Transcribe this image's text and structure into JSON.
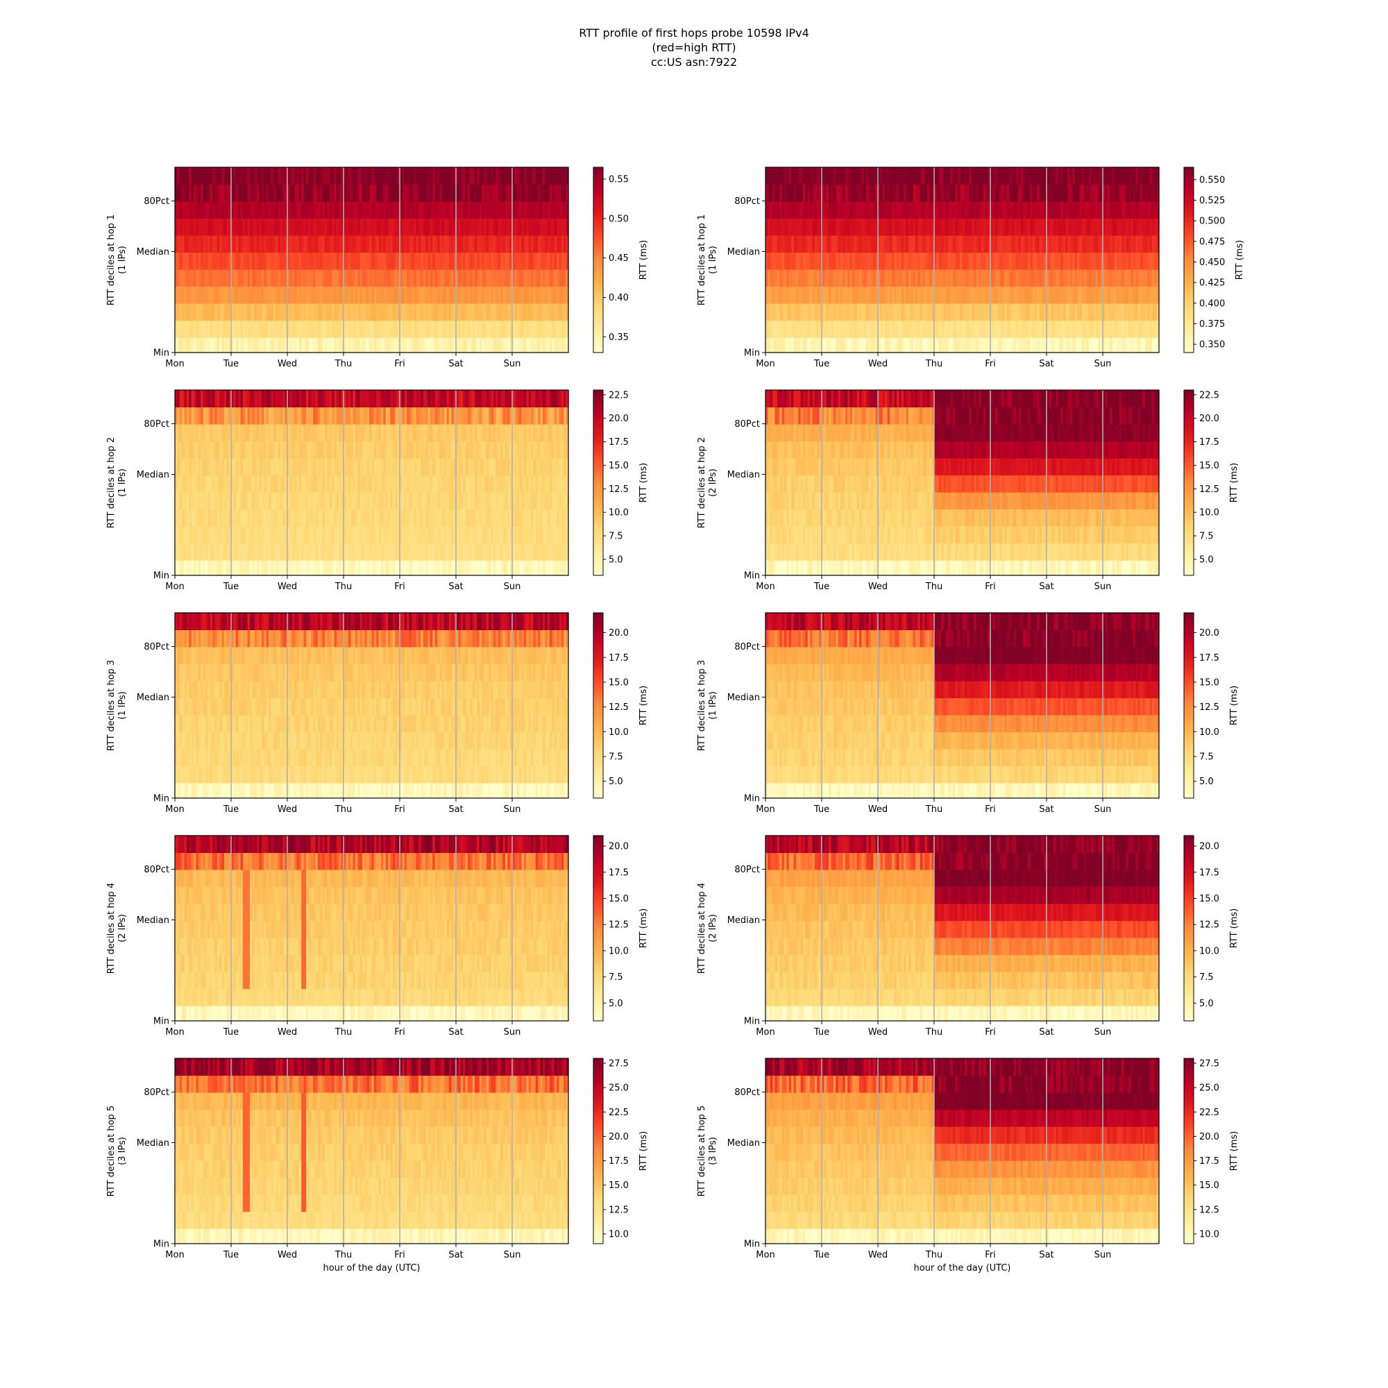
{
  "figure": {
    "title_lines": [
      "RTT profile of first hops probe 10598 IPv4",
      "(red=high RTT)",
      "cc:US asn:7922"
    ],
    "xlabel": "hour of the day (UTC)",
    "day_labels": [
      "Mon",
      "Tue",
      "Wed",
      "Thu",
      "Fri",
      "Sat",
      "Sun"
    ],
    "y_tick_labels": [
      "Min",
      "Median",
      "80Pct"
    ],
    "colorbar_label": "RTT (ms)",
    "colormap": [
      "#ffffcc",
      "#ffeda0",
      "#fed976",
      "#feb24c",
      "#fd8d3c",
      "#fc4e2a",
      "#e31a1c",
      "#bd0026",
      "#800026"
    ]
  },
  "chart_data": [
    {
      "type": "heatmap",
      "column": "left",
      "hop": 1,
      "ylabel": "RTT deciles at hop 1",
      "ylabel2": "(1 IPs)",
      "clim": [
        0.33,
        0.565
      ],
      "cbar_ticks": [
        "0.35",
        "0.40",
        "0.45",
        "0.50",
        "0.55"
      ],
      "cbar_tick_values": [
        0.35,
        0.4,
        0.45,
        0.5,
        0.55
      ],
      "baseline_deciles": [
        0.35,
        0.38,
        0.41,
        0.44,
        0.46,
        0.48,
        0.5,
        0.52,
        0.54,
        0.56,
        0.57
      ],
      "shift_day": null
    },
    {
      "type": "heatmap",
      "column": "right",
      "hop": 1,
      "ylabel": "RTT deciles at hop 1",
      "ylabel2": "(1 IPs)",
      "clim": [
        0.34,
        0.565
      ],
      "cbar_ticks": [
        "0.350",
        "0.375",
        "0.400",
        "0.425",
        "0.450",
        "0.475",
        "0.500",
        "0.525",
        "0.550"
      ],
      "cbar_tick_values": [
        0.35,
        0.375,
        0.4,
        0.425,
        0.45,
        0.475,
        0.5,
        0.525,
        0.55
      ],
      "baseline_deciles": [
        0.355,
        0.385,
        0.41,
        0.44,
        0.46,
        0.48,
        0.5,
        0.52,
        0.54,
        0.56,
        0.57
      ],
      "shift_day": null
    },
    {
      "type": "heatmap",
      "column": "left",
      "hop": 2,
      "ylabel": "RTT deciles at hop 2",
      "ylabel2": "(1 IPs)",
      "clim": [
        3.3,
        23
      ],
      "cbar_ticks": [
        "5.0",
        "7.5",
        "10.0",
        "12.5",
        "15.0",
        "17.5",
        "20.0",
        "22.5"
      ],
      "cbar_tick_values": [
        5,
        7.5,
        10,
        12.5,
        15,
        17.5,
        20,
        22.5
      ],
      "baseline_deciles": [
        4.2,
        7.5,
        7.8,
        8.0,
        8.2,
        8.4,
        8.6,
        8.9,
        9.3,
        12.5,
        20.0
      ],
      "shift_day": null
    },
    {
      "type": "heatmap",
      "column": "right",
      "hop": 2,
      "ylabel": "RTT deciles at hop 2",
      "ylabel2": "(2 IPs)",
      "clim": [
        3.3,
        23
      ],
      "cbar_ticks": [
        "5.0",
        "7.5",
        "10.0",
        "12.5",
        "15.0",
        "17.5",
        "20.0",
        "22.5"
      ],
      "cbar_tick_values": [
        5,
        7.5,
        10,
        12.5,
        15,
        17.5,
        20,
        22.5
      ],
      "baseline_deciles": [
        4.2,
        7.6,
        8.0,
        8.3,
        8.6,
        8.9,
        9.3,
        9.8,
        10.8,
        13.5,
        20.0
      ],
      "shift_day": 3.0,
      "shifted_deciles": [
        4.2,
        8.0,
        9.0,
        10.0,
        12.5,
        15.5,
        18.5,
        21.0,
        22.5,
        23.0,
        23.0
      ]
    },
    {
      "type": "heatmap",
      "column": "left",
      "hop": 3,
      "ylabel": "RTT deciles at hop 3",
      "ylabel2": "(1 IPs)",
      "clim": [
        3.3,
        22
      ],
      "cbar_ticks": [
        "5.0",
        "7.5",
        "10.0",
        "12.5",
        "15.0",
        "17.5",
        "20.0"
      ],
      "cbar_tick_values": [
        5,
        7.5,
        10,
        12.5,
        15,
        17.5,
        20
      ],
      "baseline_deciles": [
        4.2,
        7.6,
        7.9,
        8.1,
        8.3,
        8.5,
        8.7,
        9.0,
        9.5,
        13.0,
        19.5
      ],
      "shift_day": null
    },
    {
      "type": "heatmap",
      "column": "right",
      "hop": 3,
      "ylabel": "RTT deciles at hop 3",
      "ylabel2": "(1 IPs)",
      "clim": [
        3.3,
        22
      ],
      "cbar_ticks": [
        "5.0",
        "7.5",
        "10.0",
        "12.5",
        "15.0",
        "17.5",
        "20.0"
      ],
      "cbar_tick_values": [
        5,
        7.5,
        10,
        12.5,
        15,
        17.5,
        20
      ],
      "baseline_deciles": [
        4.2,
        7.7,
        8.1,
        8.4,
        8.7,
        9.0,
        9.4,
        9.9,
        10.8,
        13.5,
        19.5
      ],
      "shift_day": 3.0,
      "shifted_deciles": [
        4.2,
        8.0,
        9.0,
        10.2,
        12.5,
        14.8,
        17.5,
        20.0,
        22.0,
        22.0,
        22.0
      ]
    },
    {
      "type": "heatmap",
      "column": "left",
      "hop": 4,
      "ylabel": "RTT deciles at hop 4",
      "ylabel2": "(2 IPs)",
      "clim": [
        3.3,
        21
      ],
      "cbar_ticks": [
        "5.0",
        "7.5",
        "10.0",
        "12.5",
        "15.0",
        "17.5",
        "20.0"
      ],
      "cbar_tick_values": [
        5,
        7.5,
        10,
        12.5,
        15,
        17.5,
        20
      ],
      "baseline_deciles": [
        4.2,
        7.6,
        7.9,
        8.1,
        8.3,
        8.5,
        8.7,
        9.0,
        9.5,
        13.0,
        19.0
      ],
      "shift_day": null,
      "spikes": [
        {
          "day": 1.2,
          "width": 0.1,
          "value": 13.0
        },
        {
          "day": 2.22,
          "width": 0.1,
          "value": 13.5
        }
      ]
    },
    {
      "type": "heatmap",
      "column": "right",
      "hop": 4,
      "ylabel": "RTT deciles at hop 4",
      "ylabel2": "(2 IPs)",
      "clim": [
        3.3,
        21
      ],
      "cbar_ticks": [
        "5.0",
        "7.5",
        "10.0",
        "12.5",
        "15.0",
        "17.5",
        "20.0"
      ],
      "cbar_tick_values": [
        5,
        7.5,
        10,
        12.5,
        15,
        17.5,
        20
      ],
      "baseline_deciles": [
        4.2,
        7.7,
        8.1,
        8.4,
        8.7,
        9.0,
        9.4,
        9.9,
        10.8,
        13.5,
        19.0
      ],
      "shift_day": 3.0,
      "shifted_deciles": [
        4.2,
        8.0,
        9.0,
        10.0,
        12.5,
        14.5,
        17.0,
        19.5,
        21.0,
        21.0,
        21.0
      ]
    },
    {
      "type": "heatmap",
      "column": "left",
      "hop": 5,
      "ylabel": "RTT deciles at hop 5",
      "ylabel2": "(3 IPs)",
      "clim": [
        9.0,
        28
      ],
      "cbar_ticks": [
        "10.0",
        "12.5",
        "15.0",
        "17.5",
        "20.0",
        "22.5",
        "25.0",
        "27.5"
      ],
      "cbar_tick_values": [
        10,
        12.5,
        15,
        17.5,
        20,
        22.5,
        25,
        27.5
      ],
      "baseline_deciles": [
        10.0,
        13.3,
        13.6,
        13.9,
        14.1,
        14.4,
        14.7,
        15.1,
        15.8,
        19.5,
        26.5
      ],
      "shift_day": null,
      "spikes": [
        {
          "day": 1.2,
          "width": 0.1,
          "value": 20.0
        },
        {
          "day": 2.22,
          "width": 0.1,
          "value": 20.5
        }
      ]
    },
    {
      "type": "heatmap",
      "column": "right",
      "hop": 5,
      "ylabel": "RTT deciles at hop 5",
      "ylabel2": "(3 IPs)",
      "clim": [
        9.0,
        28
      ],
      "cbar_ticks": [
        "10.0",
        "12.5",
        "15.0",
        "17.5",
        "20.0",
        "22.5",
        "25.0",
        "27.5"
      ],
      "cbar_tick_values": [
        10,
        12.5,
        15,
        17.5,
        20,
        22.5,
        25,
        27.5
      ],
      "baseline_deciles": [
        10.0,
        13.5,
        14.0,
        14.4,
        14.8,
        15.2,
        15.7,
        16.3,
        17.3,
        20.0,
        26.5
      ],
      "shift_day": 3.0,
      "shifted_deciles": [
        10.0,
        14.0,
        15.0,
        16.3,
        18.0,
        20.0,
        22.5,
        25.5,
        28.0,
        28.0,
        28.0
      ]
    }
  ]
}
